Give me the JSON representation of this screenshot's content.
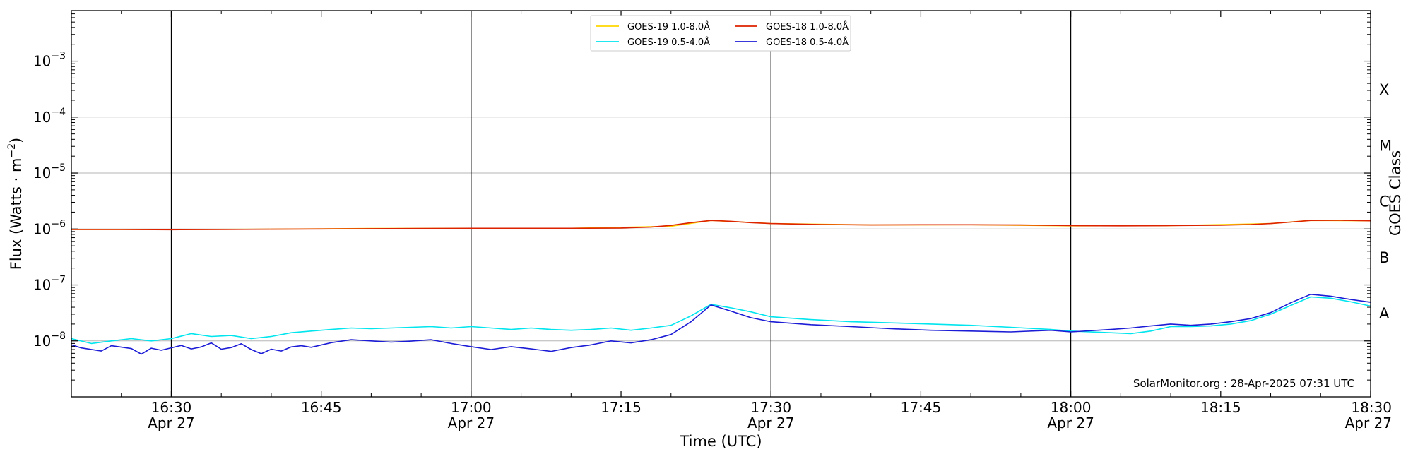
{
  "chart_data": {
    "type": "line",
    "xlabel": "Time (UTC)",
    "ylabel": "Flux (Watts · m",
    "ylabel_sup": "−2",
    "ylabel_close": ")",
    "y2label": "GOES Class",
    "yscale": "log",
    "xlim": [
      "16:20",
      "18:30"
    ],
    "ylim": [
      1e-09,
      0.008
    ],
    "x_ticks": [
      {
        "time": "16:30",
        "label": "16:30",
        "sublabel": "Apr 27"
      },
      {
        "time": "16:45",
        "label": "16:45",
        "sublabel": ""
      },
      {
        "time": "17:00",
        "label": "17:00",
        "sublabel": "Apr 27"
      },
      {
        "time": "17:15",
        "label": "17:15",
        "sublabel": ""
      },
      {
        "time": "17:30",
        "label": "17:30",
        "sublabel": "Apr 27"
      },
      {
        "time": "17:45",
        "label": "17:45",
        "sublabel": ""
      },
      {
        "time": "18:00",
        "label": "18:00",
        "sublabel": "Apr 27"
      },
      {
        "time": "18:15",
        "label": "18:15",
        "sublabel": ""
      },
      {
        "time": "18:30",
        "label": "18:30",
        "sublabel": "Apr 27"
      }
    ],
    "day_boundaries": [
      "16:30",
      "17:00",
      "17:30",
      "18:00"
    ],
    "y_ticks": [
      {
        "value": 0.001,
        "exp": "−3"
      },
      {
        "value": 0.0001,
        "exp": "−4"
      },
      {
        "value": 1e-05,
        "exp": "−5"
      },
      {
        "value": 1e-06,
        "exp": "−6"
      },
      {
        "value": 1e-07,
        "exp": "−7"
      },
      {
        "value": 1e-08,
        "exp": "−8"
      }
    ],
    "y_tick_base": "10",
    "goes_classes": [
      {
        "label": "X",
        "value": 0.0003162
      },
      {
        "label": "M",
        "value": 3.162e-05
      },
      {
        "label": "C",
        "value": 3.162e-06
      },
      {
        "label": "B",
        "value": 3.162e-07
      },
      {
        "label": "A",
        "value": 3.162e-08
      }
    ],
    "grid": "horizontal",
    "legend_position": "top-center",
    "annotation": "SolarMonitor.org : 28-Apr-2025 07:31 UTC",
    "series": [
      {
        "name": "GOES-19 1.0-8.0Å",
        "color": "#ffd700",
        "x": [
          "16:20",
          "16:30",
          "16:40",
          "16:50",
          "17:00",
          "17:10",
          "17:20",
          "17:24",
          "17:30",
          "17:40",
          "17:50",
          "18:00",
          "18:10",
          "18:20",
          "18:24",
          "18:30"
        ],
        "y": [
          9.8e-07,
          9.8e-07,
          9.9e-07,
          1.02e-06,
          1.03e-06,
          1.03e-06,
          1.12e-06,
          1.42e-06,
          1.25e-06,
          1.18e-06,
          1.19e-06,
          1.14e-06,
          1.15e-06,
          1.25e-06,
          1.42e-06,
          1.4e-06
        ]
      },
      {
        "name": "GOES-18 1.0-8.0Å",
        "color": "#dd2200",
        "x": [
          "16:20",
          "16:25",
          "16:30",
          "16:35",
          "16:40",
          "16:45",
          "16:50",
          "16:55",
          "17:00",
          "17:05",
          "17:10",
          "17:15",
          "17:18",
          "17:20",
          "17:22",
          "17:24",
          "17:26",
          "17:28",
          "17:30",
          "17:35",
          "17:40",
          "17:45",
          "17:50",
          "17:55",
          "18:00",
          "18:05",
          "18:10",
          "18:15",
          "18:18",
          "18:20",
          "18:22",
          "18:24",
          "18:27",
          "18:30"
        ],
        "y": [
          9.8e-07,
          9.8e-07,
          9.7e-07,
          9.8e-07,
          9.9e-07,
          1e-06,
          1.01e-06,
          1.02e-06,
          1.03e-06,
          1.03e-06,
          1.03e-06,
          1.04e-06,
          1.08e-06,
          1.16e-06,
          1.3e-06,
          1.42e-06,
          1.37e-06,
          1.3e-06,
          1.25e-06,
          1.2e-06,
          1.18e-06,
          1.19e-06,
          1.19e-06,
          1.18e-06,
          1.15e-06,
          1.14e-06,
          1.15e-06,
          1.17e-06,
          1.2e-06,
          1.25e-06,
          1.33e-06,
          1.42e-06,
          1.43e-06,
          1.4e-06
        ]
      },
      {
        "name": "GOES-19 0.5-4.0Å",
        "color": "#00e5ee",
        "x": [
          "16:20",
          "16:22",
          "16:24",
          "16:26",
          "16:28",
          "16:30",
          "16:32",
          "16:34",
          "16:36",
          "16:38",
          "16:40",
          "16:42",
          "16:44",
          "16:46",
          "16:48",
          "16:50",
          "16:52",
          "16:54",
          "16:56",
          "16:58",
          "17:00",
          "17:02",
          "17:04",
          "17:06",
          "17:08",
          "17:10",
          "17:12",
          "17:14",
          "17:16",
          "17:18",
          "17:20",
          "17:22",
          "17:24",
          "17:26",
          "17:28",
          "17:30",
          "17:34",
          "17:38",
          "17:42",
          "17:46",
          "17:50",
          "17:54",
          "17:58",
          "18:00",
          "18:04",
          "18:06",
          "18:08",
          "18:10",
          "18:12",
          "18:14",
          "18:16",
          "18:18",
          "18:20",
          "18:22",
          "18:24",
          "18:26",
          "18:28",
          "18:30"
        ],
        "y": [
          1.1e-08,
          9e-09,
          1e-08,
          1.1e-08,
          1e-08,
          1.1e-08,
          1.35e-08,
          1.2e-08,
          1.25e-08,
          1.1e-08,
          1.2e-08,
          1.4e-08,
          1.5e-08,
          1.6e-08,
          1.7e-08,
          1.65e-08,
          1.7e-08,
          1.75e-08,
          1.8e-08,
          1.7e-08,
          1.8e-08,
          1.7e-08,
          1.6e-08,
          1.7e-08,
          1.6e-08,
          1.55e-08,
          1.6e-08,
          1.7e-08,
          1.55e-08,
          1.7e-08,
          1.9e-08,
          2.8e-08,
          4.5e-08,
          3.9e-08,
          3.3e-08,
          2.7e-08,
          2.4e-08,
          2.2e-08,
          2.1e-08,
          2e-08,
          1.9e-08,
          1.75e-08,
          1.6e-08,
          1.5e-08,
          1.4e-08,
          1.35e-08,
          1.5e-08,
          1.8e-08,
          1.8e-08,
          1.85e-08,
          2e-08,
          2.3e-08,
          3e-08,
          4.3e-08,
          6.1e-08,
          5.8e-08,
          5e-08,
          4.2e-08
        ]
      },
      {
        "name": "GOES-18 0.5-4.0Å",
        "color": "#1c1cd6",
        "x": [
          "16:20",
          "16:21",
          "16:23",
          "16:24",
          "16:26",
          "16:27",
          "16:28",
          "16:29",
          "16:31",
          "16:32",
          "16:33",
          "16:34",
          "16:35",
          "16:36",
          "16:37",
          "16:38",
          "16:39",
          "16:40",
          "16:41",
          "16:42",
          "16:43",
          "16:44",
          "16:46",
          "16:48",
          "16:50",
          "16:52",
          "16:54",
          "16:56",
          "16:58",
          "17:00",
          "17:02",
          "17:04",
          "17:06",
          "17:08",
          "17:10",
          "17:12",
          "17:14",
          "17:16",
          "17:18",
          "17:20",
          "17:22",
          "17:24",
          "17:26",
          "17:28",
          "17:30",
          "17:34",
          "17:38",
          "17:42",
          "17:46",
          "17:50",
          "17:54",
          "17:58",
          "18:00",
          "18:04",
          "18:06",
          "18:08",
          "18:10",
          "18:12",
          "18:14",
          "18:16",
          "18:18",
          "18:20",
          "18:22",
          "18:24",
          "18:26",
          "18:28",
          "18:30"
        ],
        "y": [
          8.5e-09,
          7.5e-09,
          6.6e-09,
          8.2e-09,
          7.3e-09,
          5.8e-09,
          7.4e-09,
          6.8e-09,
          8.3e-09,
          7.2e-09,
          7.8e-09,
          9.2e-09,
          7.1e-09,
          7.6e-09,
          8.9e-09,
          7e-09,
          5.9e-09,
          7.1e-09,
          6.6e-09,
          7.8e-09,
          8.2e-09,
          7.7e-09,
          9.3e-09,
          1.05e-08,
          1e-08,
          9.5e-09,
          9.9e-09,
          1.05e-08,
          9e-09,
          7.9e-09,
          7e-09,
          7.9e-09,
          7.2e-09,
          6.5e-09,
          7.6e-09,
          8.5e-09,
          1e-08,
          9.2e-09,
          1.05e-08,
          1.3e-08,
          2.2e-08,
          4.4e-08,
          3.4e-08,
          2.6e-08,
          2.2e-08,
          1.95e-08,
          1.8e-08,
          1.65e-08,
          1.55e-08,
          1.5e-08,
          1.45e-08,
          1.55e-08,
          1.45e-08,
          1.6e-08,
          1.7e-08,
          1.85e-08,
          2e-08,
          1.9e-08,
          2e-08,
          2.2e-08,
          2.5e-08,
          3.2e-08,
          4.8e-08,
          6.8e-08,
          6.3e-08,
          5.5e-08,
          4.9e-08
        ]
      }
    ],
    "legend_order": [
      0,
      2,
      1,
      3
    ]
  }
}
